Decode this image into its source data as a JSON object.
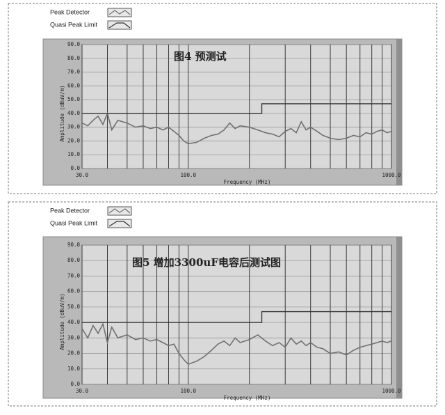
{
  "chart_data": [
    {
      "type": "line",
      "title": "图4  预测试",
      "xlabel": "Frequency (MHz)",
      "ylabel": "Amplitude (dBuV/m)",
      "xscale": "log",
      "xlim": [
        30,
        1000
      ],
      "xticks": [
        {
          "value": 30,
          "label": "30.0"
        },
        {
          "value": 100,
          "label": "100.0"
        },
        {
          "value": 1000,
          "label": "1000.0"
        }
      ],
      "xgrid": [
        40,
        50,
        60,
        70,
        80,
        90,
        200,
        300,
        400,
        500,
        600,
        700,
        800,
        900
      ],
      "ylim": [
        0,
        90
      ],
      "yticks": [
        {
          "value": 0,
          "label": "0.0"
        },
        {
          "value": 10,
          "label": "10.0"
        },
        {
          "value": 20,
          "label": "20.0"
        },
        {
          "value": 30,
          "label": "30.0"
        },
        {
          "value": 40,
          "label": "40.0"
        },
        {
          "value": 50,
          "label": "50.0"
        },
        {
          "value": 60,
          "label": "60.0"
        },
        {
          "value": 70,
          "label": "70.0"
        },
        {
          "value": 80,
          "label": "80.0"
        },
        {
          "value": 90,
          "label": "90.0"
        }
      ],
      "grid": true,
      "series": [
        {
          "name": "Peak Detector",
          "color": "#707070",
          "x": [
            30,
            32,
            34,
            36,
            38,
            40,
            42,
            45,
            50,
            55,
            60,
            65,
            70,
            75,
            80,
            85,
            90,
            95,
            100,
            110,
            120,
            130,
            140,
            150,
            160,
            170,
            180,
            200,
            220,
            240,
            260,
            280,
            300,
            320,
            340,
            360,
            380,
            400,
            430,
            460,
            500,
            550,
            600,
            650,
            700,
            750,
            800,
            850,
            900,
            950,
            1000
          ],
          "values": [
            33,
            31,
            35,
            38,
            32,
            40,
            28,
            35,
            33,
            30,
            31,
            29,
            30,
            28,
            30,
            27,
            24,
            20,
            18,
            19,
            22,
            24,
            25,
            28,
            33,
            29,
            31,
            30,
            28,
            26,
            25,
            23,
            27,
            29,
            26,
            34,
            28,
            30,
            27,
            24,
            22,
            21,
            22,
            24,
            23,
            26,
            25,
            27,
            28,
            26,
            27
          ]
        },
        {
          "name": "Quasi Peak Limit",
          "color": "#333333",
          "x": [
            30,
            230,
            230,
            1000
          ],
          "values": [
            40,
            40,
            47,
            47
          ]
        }
      ]
    },
    {
      "type": "line",
      "title": "图5  增加3300uF电容后测试图",
      "xlabel": "Frequency (MHz)",
      "ylabel": "Amplitude (dBuV/m)",
      "xscale": "log",
      "xlim": [
        30,
        1000
      ],
      "xticks": [
        {
          "value": 30,
          "label": "30.0"
        },
        {
          "value": 100,
          "label": "100.0"
        },
        {
          "value": 1000,
          "label": "1000.0"
        }
      ],
      "xgrid": [
        40,
        50,
        60,
        70,
        80,
        90,
        200,
        300,
        400,
        500,
        600,
        700,
        800,
        900
      ],
      "ylim": [
        0,
        90
      ],
      "yticks": [
        {
          "value": 0,
          "label": "0.0"
        },
        {
          "value": 10,
          "label": "10.0"
        },
        {
          "value": 20,
          "label": "20.0"
        },
        {
          "value": 30,
          "label": "30.0"
        },
        {
          "value": 40,
          "label": "40.0"
        },
        {
          "value": 50,
          "label": "50.0"
        },
        {
          "value": 60,
          "label": "60.0"
        },
        {
          "value": 70,
          "label": "70.0"
        },
        {
          "value": 80,
          "label": "80.0"
        },
        {
          "value": 90,
          "label": "90.0"
        }
      ],
      "grid": true,
      "series": [
        {
          "name": "Peak Detector",
          "color": "#707070",
          "x": [
            30,
            32,
            34,
            36,
            38,
            40,
            42,
            45,
            50,
            55,
            60,
            65,
            70,
            75,
            80,
            85,
            90,
            95,
            100,
            110,
            120,
            130,
            140,
            150,
            160,
            170,
            180,
            200,
            220,
            240,
            260,
            280,
            300,
            320,
            340,
            360,
            380,
            400,
            430,
            460,
            500,
            550,
            600,
            650,
            700,
            750,
            800,
            850,
            900,
            950,
            1000
          ],
          "values": [
            36,
            30,
            38,
            33,
            39,
            27,
            37,
            30,
            32,
            29,
            30,
            28,
            29,
            27,
            25,
            26,
            20,
            16,
            13,
            15,
            18,
            22,
            26,
            28,
            25,
            30,
            27,
            29,
            32,
            28,
            25,
            27,
            24,
            30,
            26,
            28,
            25,
            27,
            24,
            23,
            20,
            21,
            19,
            22,
            24,
            25,
            26,
            27,
            28,
            27,
            28
          ]
        },
        {
          "name": "Quasi Peak Limit",
          "color": "#333333",
          "x": [
            30,
            230,
            230,
            1000
          ],
          "values": [
            40,
            40,
            47,
            47
          ]
        }
      ]
    }
  ]
}
